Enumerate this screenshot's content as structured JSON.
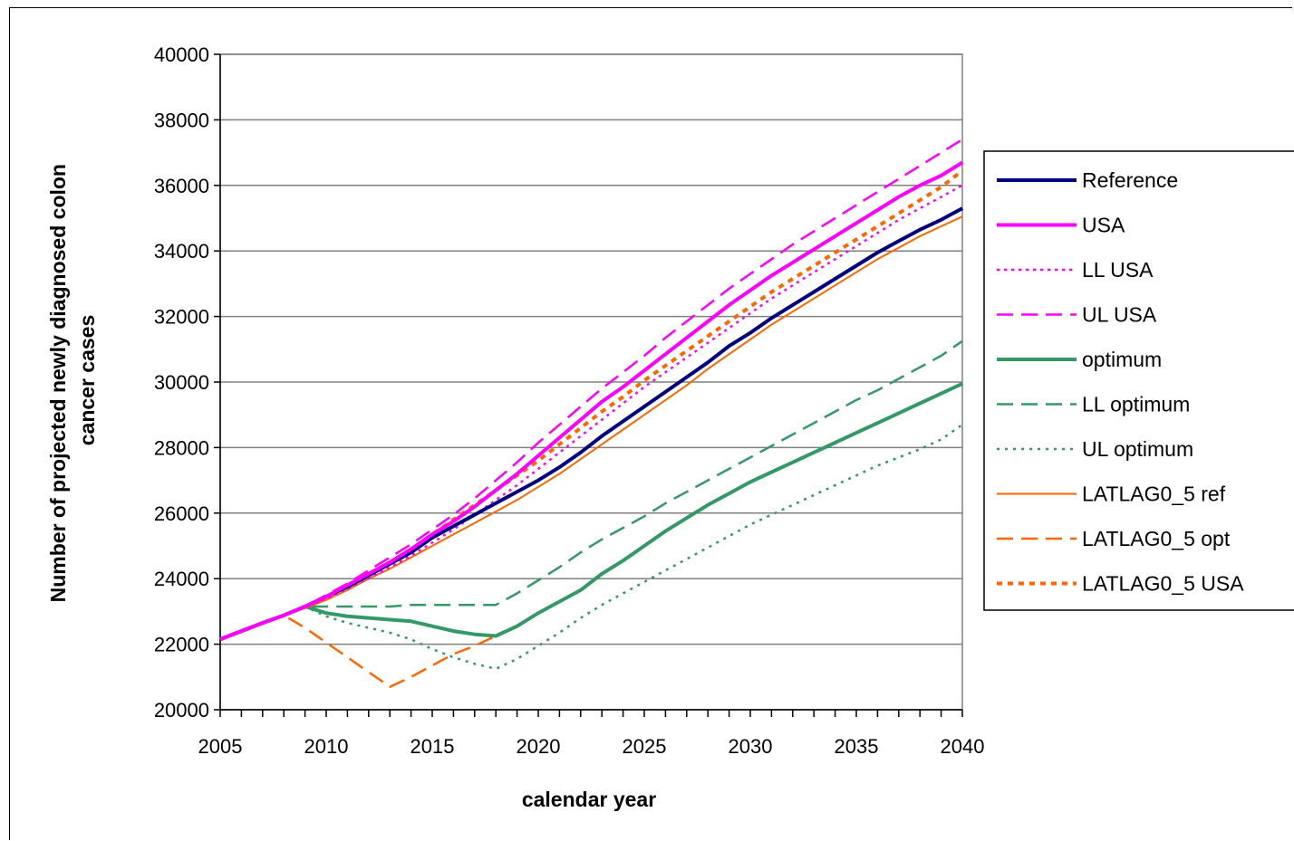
{
  "chart_data": {
    "type": "line",
    "title": "",
    "xlabel": "calendar year",
    "ylabel_lines": [
      "Number of projected newly diagnosed colon",
      "cancer cases"
    ],
    "xlim": [
      2005,
      2040
    ],
    "ylim": [
      20000,
      40000
    ],
    "x_ticks": [
      2005,
      2010,
      2015,
      2020,
      2025,
      2030,
      2035,
      2040
    ],
    "y_ticks": [
      20000,
      22000,
      24000,
      26000,
      28000,
      30000,
      32000,
      34000,
      36000,
      38000,
      40000
    ],
    "grid": "horizontal",
    "legend_position": "right",
    "x": [
      2005,
      2006,
      2007,
      2008,
      2009,
      2010,
      2011,
      2012,
      2013,
      2014,
      2015,
      2016,
      2017,
      2018,
      2019,
      2020,
      2021,
      2022,
      2023,
      2024,
      2025,
      2026,
      2027,
      2028,
      2029,
      2030,
      2031,
      2032,
      2033,
      2034,
      2035,
      2036,
      2037,
      2038,
      2039,
      2040
    ],
    "series": [
      {
        "name": "Reference",
        "color": "#000080",
        "width": 4,
        "dash": "",
        "values": [
          22150,
          22400,
          22650,
          22880,
          23150,
          23450,
          23750,
          24100,
          24450,
          24800,
          25250,
          25600,
          25950,
          26300,
          26650,
          27000,
          27400,
          27850,
          28350,
          28800,
          29250,
          29700,
          30150,
          30600,
          31100,
          31500,
          31950,
          32350,
          32750,
          33150,
          33550,
          33950,
          34300,
          34650,
          34950,
          35300
        ]
      },
      {
        "name": "USA",
        "color": "#ff00ff",
        "width": 4,
        "dash": "",
        "values": [
          22150,
          22400,
          22650,
          22880,
          23150,
          23450,
          23800,
          24150,
          24500,
          24900,
          25350,
          25750,
          26200,
          26700,
          27200,
          27750,
          28300,
          28850,
          29400,
          29850,
          30350,
          30850,
          31350,
          31850,
          32350,
          32800,
          33250,
          33650,
          34050,
          34450,
          34850,
          35250,
          35650,
          36000,
          36300,
          36700
        ]
      },
      {
        "name": "LL USA",
        "color": "#ff00ff",
        "width": 2.5,
        "dash": "3 5",
        "values": [
          22150,
          22400,
          22650,
          22880,
          23150,
          23400,
          23700,
          24000,
          24350,
          24700,
          25100,
          25500,
          25950,
          26400,
          26850,
          27350,
          27850,
          28350,
          28850,
          29350,
          29850,
          30300,
          30750,
          31200,
          31650,
          32100,
          32550,
          32950,
          33350,
          33750,
          34150,
          34550,
          34950,
          35300,
          35650,
          36000
        ]
      },
      {
        "name": "UL USA",
        "color": "#ff00ff",
        "width": 2.5,
        "dash": "18 9",
        "values": [
          22150,
          22400,
          22650,
          22880,
          23150,
          23500,
          23850,
          24250,
          24650,
          25050,
          25500,
          25950,
          26450,
          27000,
          27550,
          28150,
          28700,
          29250,
          29800,
          30300,
          30800,
          31350,
          31850,
          32350,
          32850,
          33300,
          33750,
          34200,
          34600,
          35000,
          35400,
          35800,
          36200,
          36600,
          37000,
          37400
        ]
      },
      {
        "name": "optimum",
        "color": "#339966",
        "width": 4,
        "dash": "",
        "values": [
          22150,
          22400,
          22650,
          22880,
          23150,
          22950,
          22850,
          22800,
          22750,
          22700,
          22550,
          22400,
          22300,
          22250,
          22550,
          22950,
          23300,
          23650,
          24150,
          24550,
          25000,
          25450,
          25850,
          26250,
          26600,
          26950,
          27250,
          27550,
          27850,
          28150,
          28450,
          28750,
          29050,
          29350,
          29650,
          29950
        ]
      },
      {
        "name": "LL optimum",
        "color": "#339966",
        "width": 2.5,
        "dash": "18 9",
        "values": [
          22150,
          22400,
          22650,
          22880,
          23150,
          23150,
          23150,
          23150,
          23150,
          23200,
          23200,
          23200,
          23200,
          23200,
          23550,
          23950,
          24350,
          24800,
          25200,
          25550,
          25900,
          26300,
          26650,
          27000,
          27350,
          27700,
          28050,
          28400,
          28750,
          29100,
          29450,
          29750,
          30100,
          30450,
          30800,
          31250
        ]
      },
      {
        "name": "UL optimum",
        "color": "#339966",
        "width": 2.5,
        "dash": "3 6",
        "values": [
          22150,
          22400,
          22650,
          22880,
          23150,
          22850,
          22650,
          22500,
          22350,
          22150,
          21850,
          21600,
          21400,
          21250,
          21550,
          21950,
          22350,
          22800,
          23200,
          23550,
          23900,
          24250,
          24600,
          24950,
          25300,
          25650,
          25950,
          26250,
          26550,
          26850,
          27150,
          27450,
          27700,
          27950,
          28250,
          28700
        ]
      },
      {
        "name": "LATLAG0_5 ref",
        "color": "#ff6600",
        "width": 2,
        "dash": "",
        "values": [
          22150,
          22400,
          22650,
          22880,
          23100,
          23350,
          23650,
          24000,
          24300,
          24650,
          25000,
          25350,
          25700,
          26050,
          26400,
          26800,
          27200,
          27650,
          28100,
          28550,
          29000,
          29450,
          29900,
          30400,
          30850,
          31300,
          31750,
          32150,
          32550,
          32950,
          33350,
          33750,
          34100,
          34450,
          34750,
          35050
        ]
      },
      {
        "name": "LATLAG0_5 opt",
        "color": "#ff6600",
        "width": 2.5,
        "dash": "18 9",
        "values": [
          22150,
          22400,
          22650,
          22880,
          22500,
          22050,
          21600,
          21150,
          20700,
          21000,
          21350,
          21700,
          21950,
          22250,
          22550,
          22950,
          23300,
          23650,
          24150,
          24550,
          25000,
          25450,
          25850,
          26250,
          26600,
          26950,
          27250,
          27550,
          27850,
          28150,
          28450,
          28750,
          29050,
          29350,
          29650,
          29950
        ]
      },
      {
        "name": "LATLAG0_5 USA",
        "color": "#ff6600",
        "width": 4,
        "dash": "6 6",
        "values": [
          22150,
          22400,
          22650,
          22880,
          23150,
          23450,
          23800,
          24150,
          24500,
          24900,
          25350,
          25800,
          26250,
          26700,
          27150,
          27600,
          28100,
          28600,
          29100,
          29550,
          30050,
          30500,
          30950,
          31400,
          31850,
          32300,
          32750,
          33150,
          33550,
          33950,
          34350,
          34750,
          35150,
          35550,
          35950,
          36450
        ]
      }
    ]
  }
}
